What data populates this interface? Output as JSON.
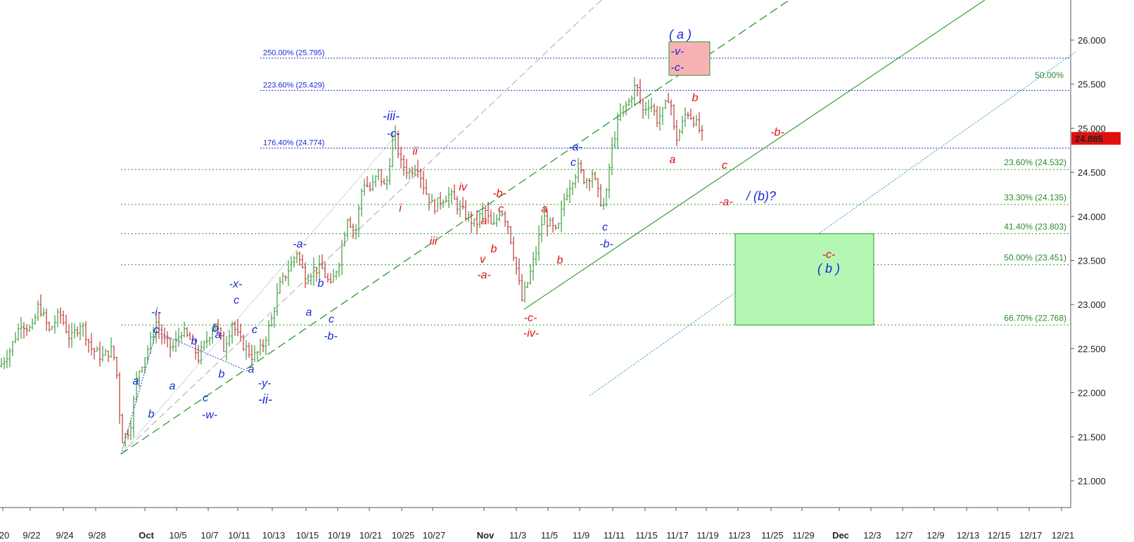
{
  "chart_data": {
    "type": "candlestick",
    "y_axis": {
      "ticks": [
        21.0,
        21.5,
        22.0,
        22.5,
        23.0,
        23.5,
        24.0,
        24.5,
        25.0,
        25.5,
        26.0
      ],
      "tick_labels": [
        "21.000",
        "21.500",
        "22.000",
        "22.500",
        "23.000",
        "23.500",
        "24.000",
        "24.500",
        "25.000",
        "25.500",
        "26.000"
      ],
      "range": [
        20.6,
        26.45
      ]
    },
    "x_axis": {
      "tick_labels": [
        "20",
        "9/22",
        "9/24",
        "9/28",
        "Oct",
        "10/5",
        "10/7",
        "10/11",
        "10/13",
        "10/15",
        "10/19",
        "10/21",
        "10/25",
        "10/27",
        "Nov",
        "11/3",
        "11/5",
        "11/9",
        "11/11",
        "11/15",
        "11/17",
        "11/19",
        "11/23",
        "11/25",
        "11/29",
        "Dec",
        "12/3",
        "12/7",
        "12/9",
        "12/13",
        "12/15",
        "12/17",
        "12/21"
      ]
    },
    "last_price": {
      "value": 24.885,
      "label": "24.885",
      "color": "#e01010"
    },
    "fib_levels_blue": [
      {
        "price": 25.795,
        "label": "250.00% (25.795)"
      },
      {
        "price": 25.429,
        "label": "223.60% (25.429)"
      },
      {
        "price": 24.774,
        "label": "176.40% (24.774)"
      }
    ],
    "fib_levels_green": [
      {
        "price": 24.532,
        "label": "23.60% (24.532)"
      },
      {
        "price": 24.135,
        "label": "33.30% (24.135)"
      },
      {
        "price": 23.803,
        "label": "41.40% (23.803)"
      },
      {
        "price": 23.451,
        "label": "50.00% (23.451)"
      },
      {
        "price": 22.768,
        "label": "66.70% (22.768)"
      }
    ],
    "channel_label": "50.00%",
    "target_boxes": [
      {
        "name": "upper-target",
        "price_top": 25.98,
        "price_bottom": 25.6,
        "color": "#f7b3b3"
      },
      {
        "name": "lower-target",
        "price_top": 23.803,
        "price_bottom": 22.768,
        "color": "#b3f7b3"
      }
    ],
    "wave_labels_blue": [
      "-i-",
      "c",
      "a",
      "b",
      "a",
      "b",
      "c",
      "-w-",
      "b",
      "a",
      "-x-",
      "c",
      "a",
      "b",
      "a",
      "c",
      "-y-",
      "-ii-",
      "-a-",
      "b",
      "a",
      "c",
      "-b-",
      "-iii-",
      "-c-",
      "-a-",
      "c",
      "c",
      "-b-",
      "( a )",
      "-v-",
      "-c-",
      "/ (b)?",
      "( b )"
    ],
    "wave_labels_red": [
      "ii",
      "i",
      "iii",
      "iv",
      "a",
      "v",
      "b",
      "-a-",
      "-b-",
      "c",
      "a",
      "b",
      "-c-",
      "-iv-",
      "b",
      "a",
      "c",
      "-a-",
      "-b-",
      "-c-"
    ]
  }
}
